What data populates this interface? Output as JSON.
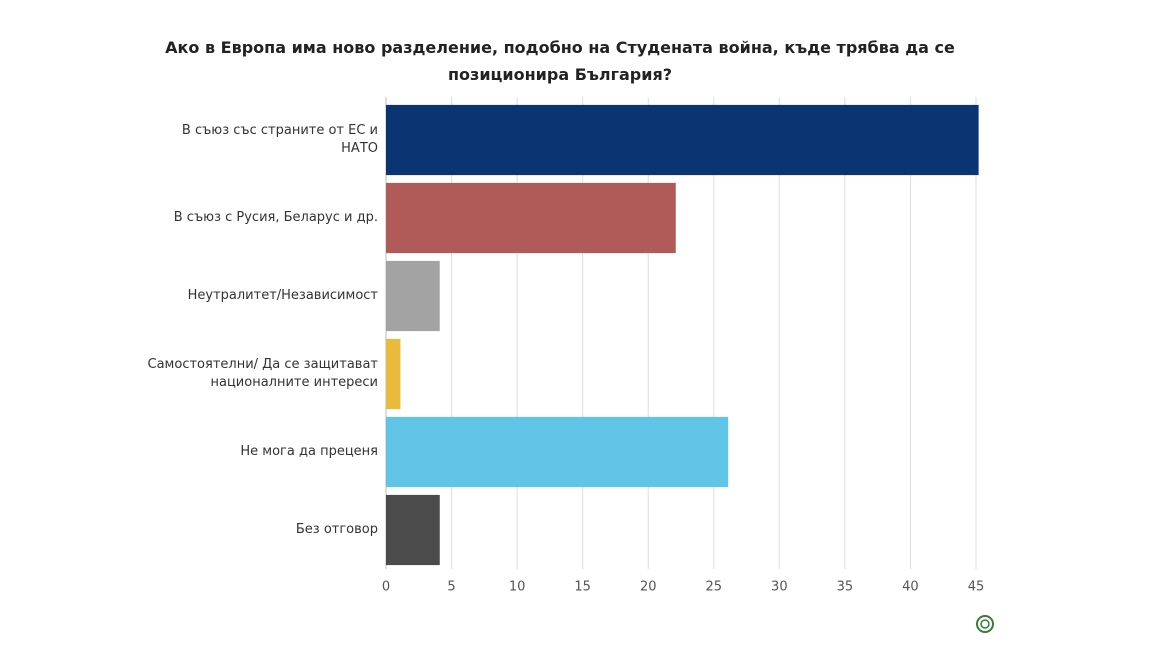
{
  "chart_data": {
    "type": "hbar",
    "title": "Ако в Европа има ново разделение, подобно на Студената война, къде трябва да се позиционира България?",
    "categories": [
      "В съюз със страните от ЕС и НАТО",
      "В съюз с Русия, Беларус и др.",
      "Неутралитет/Независимост",
      "Самостоятелни/ Да се защитават националните интереси",
      "Не мога да преценя",
      "Без отговор"
    ],
    "values": [
      45.2,
      22.1,
      4.1,
      1.1,
      26.1,
      4.1
    ],
    "colors": [
      "#0b3572",
      "#b15b59",
      "#a3a3a3",
      "#e9bb3c",
      "#60c4e7",
      "#4b4b4b"
    ],
    "xlim": [
      0,
      45
    ],
    "xticks": [
      0,
      5,
      10,
      15,
      20,
      25,
      30,
      35,
      40,
      45
    ],
    "grid": true
  }
}
